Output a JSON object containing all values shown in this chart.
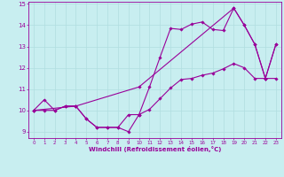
{
  "background_color": "#c8eef0",
  "line_color": "#990099",
  "grid_color": "#b0dde0",
  "xlabel": "Windchill (Refroidissement éolien,°C)",
  "xlim": [
    -0.5,
    23.5
  ],
  "ylim": [
    8.7,
    15.1
  ],
  "xticks": [
    0,
    1,
    2,
    3,
    4,
    5,
    6,
    7,
    8,
    9,
    10,
    11,
    12,
    13,
    14,
    15,
    16,
    17,
    18,
    19,
    20,
    21,
    22,
    23
  ],
  "yticks": [
    9,
    10,
    11,
    12,
    13,
    14,
    15
  ],
  "line1_x": [
    0,
    1,
    2,
    3,
    4,
    5,
    6,
    7,
    8,
    9,
    10,
    11,
    12,
    13,
    14,
    15,
    16,
    17,
    18,
    19,
    20,
    21,
    22,
    23
  ],
  "line1_y": [
    10.0,
    10.5,
    10.0,
    10.2,
    10.2,
    9.6,
    9.2,
    9.2,
    9.2,
    9.8,
    9.8,
    11.1,
    12.5,
    13.85,
    13.8,
    14.05,
    14.15,
    13.8,
    13.75,
    14.8,
    14.0,
    13.1,
    11.5,
    13.1
  ],
  "line2_x": [
    0,
    1,
    2,
    3,
    4,
    5,
    6,
    7,
    8,
    9,
    10,
    11,
    12,
    13,
    14,
    15,
    16,
    17,
    18,
    19,
    20,
    21,
    22,
    23
  ],
  "line2_y": [
    10.0,
    10.0,
    10.0,
    10.2,
    10.2,
    9.6,
    9.2,
    9.2,
    9.2,
    9.0,
    9.8,
    10.05,
    10.55,
    11.05,
    11.45,
    11.5,
    11.65,
    11.75,
    11.95,
    12.2,
    12.0,
    11.5,
    11.5,
    11.5
  ],
  "line3_x": [
    0,
    4,
    10,
    19,
    20,
    21,
    22,
    23
  ],
  "line3_y": [
    10.0,
    10.2,
    11.1,
    14.8,
    14.0,
    13.1,
    11.5,
    13.1
  ]
}
